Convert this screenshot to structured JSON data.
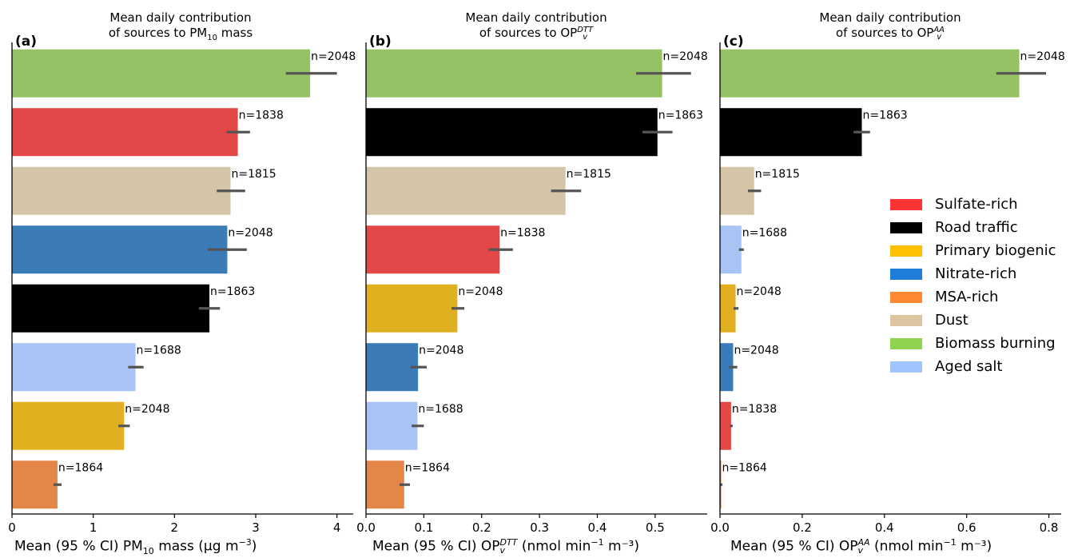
{
  "chart_data": [
    {
      "type": "bar",
      "panel_label": "(a)",
      "title_line1": "Mean daily contribution",
      "title_line2_pre": "of sources to PM",
      "title_line2_sub": "10",
      "title_line2_sup": "",
      "title_line2_post": " mass",
      "xlabel_pre": "Mean (95 % CI) PM",
      "xlabel_sub": "10",
      "xlabel_sup": "",
      "xlabel_post": " mass (μg  m",
      "xlabel_unit_sup": "−3",
      "xlabel_end": ")",
      "xlim": [
        0,
        4.2
      ],
      "xticks": [
        "0",
        "1",
        "2",
        "3",
        "4"
      ],
      "categories": [
        "Biomass burning",
        "Sulfate-rich",
        "Dust",
        "Nitrate-rich",
        "Road traffic",
        "Aged salt",
        "Primary biogenic",
        "MSA-rich"
      ],
      "values": [
        3.67,
        2.78,
        2.69,
        2.65,
        2.43,
        1.52,
        1.38,
        0.56
      ],
      "ci_low": [
        3.37,
        2.64,
        2.52,
        2.41,
        2.3,
        1.43,
        1.31,
        0.51
      ],
      "ci_high": [
        4.0,
        2.93,
        2.87,
        2.89,
        2.56,
        1.62,
        1.45,
        0.61
      ],
      "n_labels": [
        "n=2048",
        "n=1838",
        "n=1815",
        "n=2048",
        "n=1863",
        "n=1688",
        "n=2048",
        "n=1864"
      ]
    },
    {
      "type": "bar",
      "panel_label": "(b)",
      "title_line1": "Mean daily contribution",
      "title_line2_pre": "of sources to OP",
      "title_line2_sub": "v",
      "title_line2_sup": "DTT",
      "title_line2_post": "",
      "xlabel_pre": "Mean (95 % CI) OP",
      "xlabel_sub": "v",
      "xlabel_sup": "DTT",
      "xlabel_post": " (nmol  min",
      "xlabel_unit_sup": "−1",
      "xlabel_end": "  m⁻³)",
      "xlim": [
        0,
        0.59
      ],
      "xticks": [
        "0.0",
        "0.1",
        "0.2",
        "0.3",
        "0.4",
        "0.5"
      ],
      "categories": [
        "Biomass burning",
        "Road traffic",
        "Dust",
        "Sulfate-rich",
        "Primary biogenic",
        "Nitrate-rich",
        "Aged salt",
        "MSA-rich"
      ],
      "values": [
        0.512,
        0.504,
        0.345,
        0.231,
        0.158,
        0.09,
        0.089,
        0.066
      ],
      "ci_low": [
        0.467,
        0.478,
        0.32,
        0.212,
        0.148,
        0.077,
        0.079,
        0.058
      ],
      "ci_high": [
        0.562,
        0.53,
        0.372,
        0.254,
        0.17,
        0.105,
        0.1,
        0.076
      ],
      "n_labels": [
        "n=2048",
        "n=1863",
        "n=1815",
        "n=1838",
        "n=2048",
        "n=2048",
        "n=1688",
        "n=1864"
      ]
    },
    {
      "type": "bar",
      "panel_label": "(c)",
      "title_line1": "Mean daily contribution",
      "title_line2_pre": "of sources to OP",
      "title_line2_sub": "v",
      "title_line2_sup": "AA",
      "title_line2_post": "",
      "xlabel_pre": "Mean (95 % CI) OP",
      "xlabel_sub": "v",
      "xlabel_sup": "AA",
      "xlabel_post": " (nmol  min",
      "xlabel_unit_sup": "−1",
      "xlabel_end": "  m⁻³)",
      "xlim": [
        0,
        0.83
      ],
      "xticks": [
        "0.0",
        "0.2",
        "0.4",
        "0.6",
        "0.8"
      ],
      "categories": [
        "Biomass burning",
        "Road traffic",
        "Dust",
        "Aged salt",
        "Primary biogenic",
        "Nitrate-rich",
        "Sulfate-rich",
        "MSA-rich"
      ],
      "values": [
        0.728,
        0.345,
        0.083,
        0.052,
        0.038,
        0.032,
        0.027,
        0.003
      ],
      "ci_low": [
        0.672,
        0.325,
        0.068,
        0.046,
        0.033,
        0.022,
        0.024,
        0.0
      ],
      "ci_high": [
        0.793,
        0.365,
        0.1,
        0.058,
        0.045,
        0.042,
        0.031,
        0.006
      ],
      "n_labels": [
        "n=2048",
        "n=1863",
        "n=1815",
        "n=1688",
        "n=2048",
        "n=2048",
        "n=1838",
        "n=1864"
      ]
    }
  ],
  "colors": {
    "Sulfate-rich": "#e34848",
    "Road traffic": "#000000",
    "Primary biogenic": "#e0b020",
    "Nitrate-rich": "#3a7bb8",
    "MSA-rich": "#e48648",
    "Dust": "#d4c4a8",
    "Biomass burning": "#95c265",
    "Aged salt": "#a8c4f4",
    "errorbar": "#555555"
  },
  "legend": {
    "items": [
      {
        "label": "Sulfate-rich",
        "color": "#ff3333"
      },
      {
        "label": "Road traffic",
        "color": "#000000"
      },
      {
        "label": "Primary biogenic",
        "color": "#ffc000"
      },
      {
        "label": "Nitrate-rich",
        "color": "#1f7fd8"
      },
      {
        "label": "MSA-rich",
        "color": "#ff8833"
      },
      {
        "label": "Dust",
        "color": "#dcc5a0"
      },
      {
        "label": "Biomass burning",
        "color": "#8fd44f"
      },
      {
        "label": "Aged salt",
        "color": "#a0c4ff"
      }
    ]
  }
}
